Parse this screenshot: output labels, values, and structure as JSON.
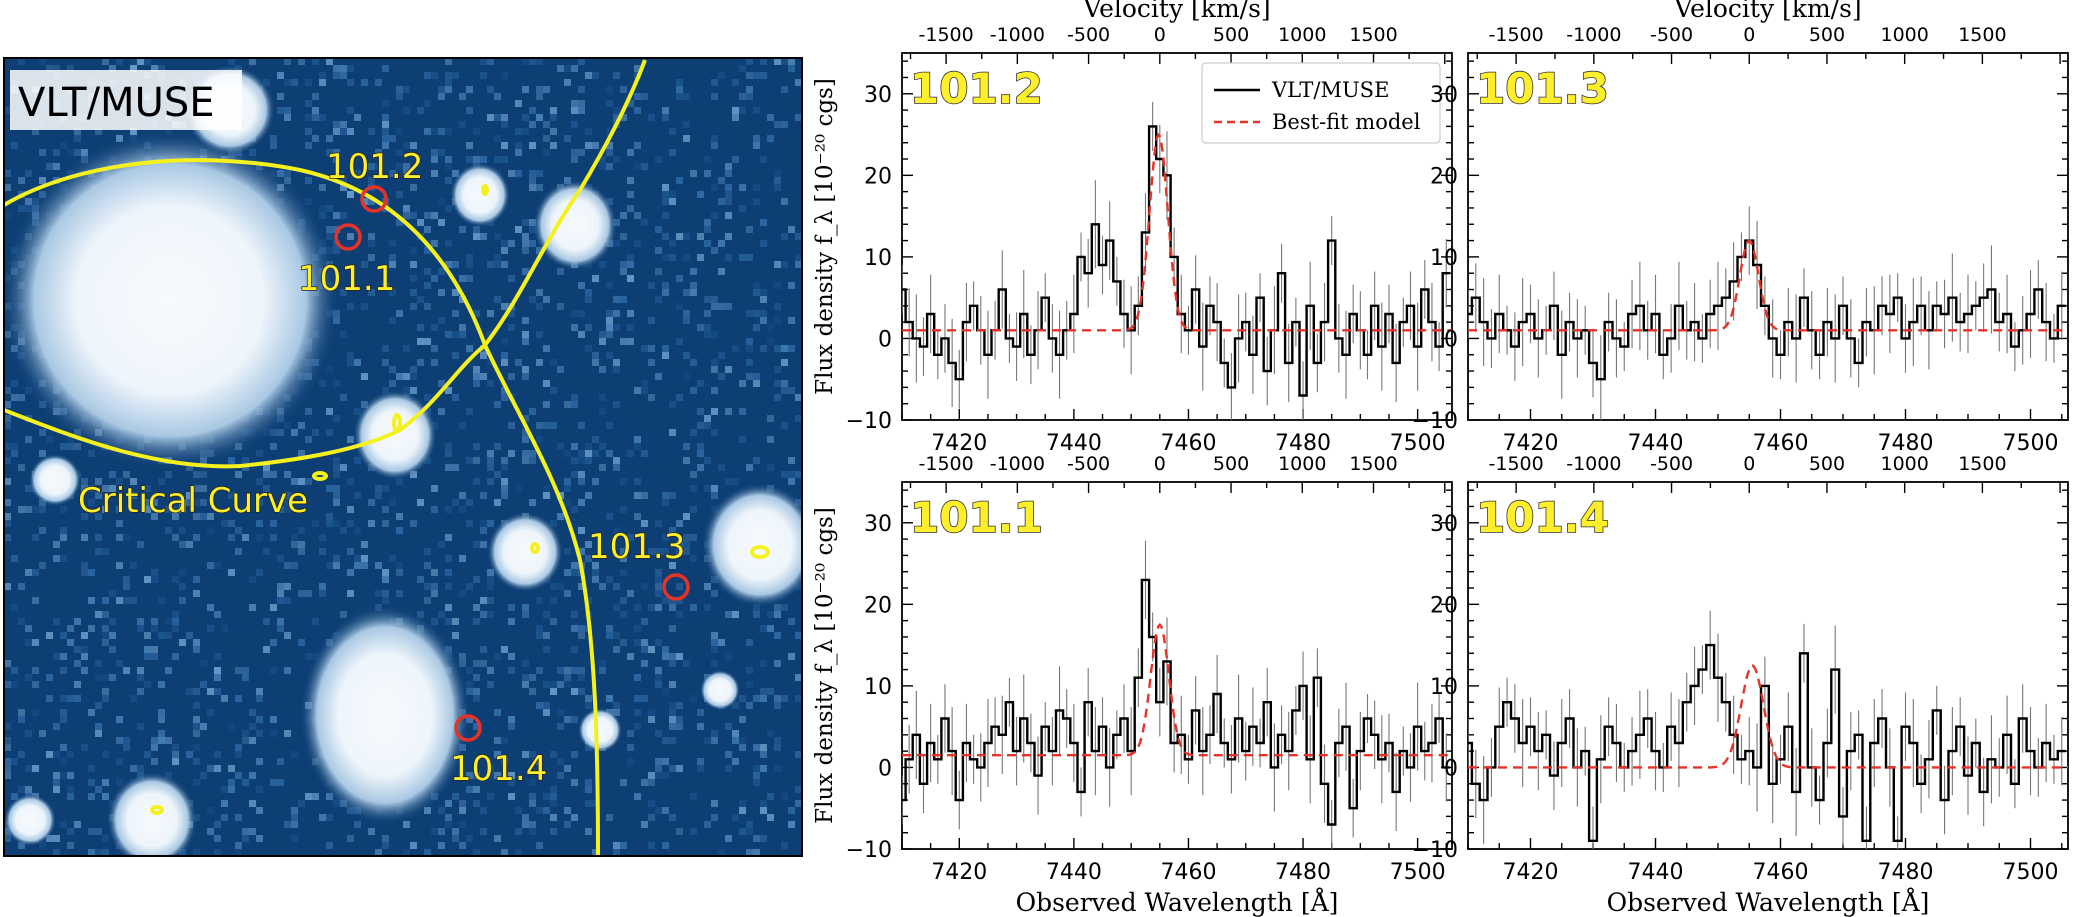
{
  "image_panel": {
    "instrument_label": "VLT/MUSE",
    "critical_curve_label": "Critical Curve",
    "images": [
      {
        "id": "101.2",
        "label": "101.2"
      },
      {
        "id": "101.1",
        "label": "101.1"
      },
      {
        "id": "101.3",
        "label": "101.3"
      },
      {
        "id": "101.4",
        "label": "101.4"
      }
    ],
    "colors": {
      "background": "#0d3f75",
      "source": "#f3f8fc",
      "curve": "#f5f11f",
      "marker": "#e53327",
      "label_fill": "#ffee2a"
    }
  },
  "chart_data": [
    {
      "type": "line",
      "panel_label": "101.2",
      "xlabel": "",
      "ylabel": "Flux density f_λ [10⁻²⁰ cgs]",
      "top_axis_label": "Velocity [km/s]",
      "xlim": [
        7410,
        7506
      ],
      "ylim": [
        -10,
        35
      ],
      "xticks": [
        "7420",
        "7440",
        "7460",
        "7480",
        "7500"
      ],
      "yticks": [
        "−10",
        "0",
        "10",
        "20",
        "30"
      ],
      "velocity_ticks": [
        "-1500",
        "-1000",
        "-500",
        "0",
        "500",
        "1000",
        "1500"
      ],
      "legend": [
        {
          "label": "VLT/MUSE",
          "color": "#000000",
          "style": "solid"
        },
        {
          "label": "Best-fit model",
          "color": "#e53327",
          "style": "dashed"
        }
      ],
      "x": [
        7410,
        7411.25,
        7412.5,
        7413.75,
        7415,
        7416.25,
        7417.5,
        7418.75,
        7420,
        7421.25,
        7422.5,
        7423.75,
        7425,
        7426.25,
        7427.5,
        7428.75,
        7430,
        7431.25,
        7432.5,
        7433.75,
        7435,
        7436.25,
        7437.5,
        7438.75,
        7440,
        7441.25,
        7442.5,
        7443.75,
        7445,
        7446.25,
        7447.5,
        7448.75,
        7450,
        7451.25,
        7452.5,
        7453.75,
        7455,
        7456.25,
        7457.5,
        7458.75,
        7460,
        7461.25,
        7462.5,
        7463.75,
        7465,
        7466.25,
        7467.5,
        7468.75,
        7470,
        7471.25,
        7472.5,
        7473.75,
        7475,
        7476.25,
        7477.5,
        7478.75,
        7480,
        7481.25,
        7482.5,
        7483.75,
        7485,
        7486.25,
        7487.5,
        7488.75,
        7490,
        7491.25,
        7492.5,
        7493.75,
        7495,
        7496.25,
        7497.5,
        7498.75,
        7500,
        7501.25,
        7502.5,
        7503.75,
        7505
      ],
      "series": [
        {
          "name": "VLT/MUSE",
          "values": [
            6,
            2,
            0,
            -1,
            3,
            -2,
            0,
            -3,
            -5,
            2,
            4,
            1,
            -2,
            1,
            6,
            0,
            -1,
            3,
            -2,
            1,
            5,
            0,
            -2,
            1,
            3,
            10,
            8,
            14,
            9,
            12,
            7,
            3,
            1,
            4,
            13,
            26,
            22,
            20,
            10,
            3,
            1,
            6,
            -1,
            4,
            2,
            -3,
            -6,
            0,
            2,
            -2,
            5,
            -4,
            1,
            8,
            -3,
            2,
            -7,
            4,
            -3,
            2,
            12,
            0,
            -2,
            3,
            1,
            -2,
            4,
            -1,
            3,
            -3,
            2,
            4,
            -1,
            6,
            2,
            -1,
            8
          ]
        },
        {
          "name": "Best-fit model",
          "model": {
            "amplitude": 24,
            "center": 7454.8,
            "sigma": 1.6,
            "continuum": 1
          }
        }
      ]
    },
    {
      "type": "line",
      "panel_label": "101.3",
      "xlabel": "",
      "ylabel": "",
      "top_axis_label": "Velocity [km/s]",
      "xlim": [
        7410,
        7506
      ],
      "ylim": [
        -10,
        35
      ],
      "xticks": [
        "7420",
        "7440",
        "7460",
        "7480",
        "7500"
      ],
      "yticks": [
        "−10",
        "0",
        "10",
        "20",
        "30"
      ],
      "velocity_ticks": [
        "-1500",
        "-1000",
        "-500",
        "0",
        "500",
        "1000",
        "1500"
      ],
      "x": [
        7410,
        7411.25,
        7412.5,
        7413.75,
        7415,
        7416.25,
        7417.5,
        7418.75,
        7420,
        7421.25,
        7422.5,
        7423.75,
        7425,
        7426.25,
        7427.5,
        7428.75,
        7430,
        7431.25,
        7432.5,
        7433.75,
        7435,
        7436.25,
        7437.5,
        7438.75,
        7440,
        7441.25,
        7442.5,
        7443.75,
        7445,
        7446.25,
        7447.5,
        7448.75,
        7450,
        7451.25,
        7452.5,
        7453.75,
        7455,
        7456.25,
        7457.5,
        7458.75,
        7460,
        7461.25,
        7462.5,
        7463.75,
        7465,
        7466.25,
        7467.5,
        7468.75,
        7470,
        7471.25,
        7472.5,
        7473.75,
        7475,
        7476.25,
        7477.5,
        7478.75,
        7480,
        7481.25,
        7482.5,
        7483.75,
        7485,
        7486.25,
        7487.5,
        7488.75,
        7490,
        7491.25,
        7492.5,
        7493.75,
        7495,
        7496.25,
        7497.5,
        7498.75,
        7500,
        7501.25,
        7502.5,
        7503.75,
        7505
      ],
      "series": [
        {
          "name": "VLT/MUSE",
          "values": [
            3,
            5,
            2,
            0,
            3,
            1,
            -1,
            2,
            3,
            0,
            1,
            4,
            -2,
            2,
            0,
            1,
            -3,
            -5,
            2,
            0,
            -1,
            3,
            4,
            1,
            3,
            -2,
            0,
            4,
            1,
            2,
            0,
            3,
            4,
            5,
            7,
            10,
            12,
            9,
            4,
            0,
            -2,
            2,
            0,
            5,
            1,
            -2,
            2,
            0,
            4,
            0,
            -3,
            2,
            1,
            4,
            3,
            5,
            0,
            2,
            4,
            1,
            4,
            3,
            5,
            2,
            3,
            4,
            5,
            6,
            2,
            3,
            -1,
            1,
            3,
            6,
            2,
            0,
            4
          ]
        },
        {
          "name": "Best-fit model",
          "model": {
            "amplitude": 11,
            "center": 7455,
            "sigma": 1.5,
            "continuum": 1
          }
        }
      ]
    },
    {
      "type": "line",
      "panel_label": "101.1",
      "xlabel": "Observed Wavelength [Å]",
      "ylabel": "Flux density f_λ [10⁻²⁰ cgs]",
      "top_axis_label": "",
      "xlim": [
        7410,
        7506
      ],
      "ylim": [
        -10,
        35
      ],
      "xticks": [
        "7420",
        "7440",
        "7460",
        "7480",
        "7500"
      ],
      "yticks": [
        "−10",
        "0",
        "10",
        "20",
        "30"
      ],
      "velocity_ticks": [
        "-1500",
        "-1000",
        "-500",
        "0",
        "500",
        "1000",
        "1500"
      ],
      "x": [
        7410,
        7411.25,
        7412.5,
        7413.75,
        7415,
        7416.25,
        7417.5,
        7418.75,
        7420,
        7421.25,
        7422.5,
        7423.75,
        7425,
        7426.25,
        7427.5,
        7428.75,
        7430,
        7431.25,
        7432.5,
        7433.75,
        7435,
        7436.25,
        7437.5,
        7438.75,
        7440,
        7441.25,
        7442.5,
        7443.75,
        7445,
        7446.25,
        7447.5,
        7448.75,
        7450,
        7451.25,
        7452.5,
        7453.75,
        7455,
        7456.25,
        7457.5,
        7458.75,
        7460,
        7461.25,
        7462.5,
        7463.75,
        7465,
        7466.25,
        7467.5,
        7468.75,
        7470,
        7471.25,
        7472.5,
        7473.75,
        7475,
        7476.25,
        7477.5,
        7478.75,
        7480,
        7481.25,
        7482.5,
        7483.75,
        7485,
        7486.25,
        7487.5,
        7488.75,
        7490,
        7491.25,
        7492.5,
        7493.75,
        7495,
        7496.25,
        7497.5,
        7498.75,
        7500,
        7501.25,
        7502.5,
        7503.75,
        7505
      ],
      "series": [
        {
          "name": "VLT/MUSE",
          "values": [
            -4,
            1,
            4,
            -2,
            3,
            1,
            6,
            2,
            -4,
            3,
            1,
            0,
            3,
            5,
            4,
            8,
            2,
            6,
            3,
            -1,
            5,
            2,
            7,
            6,
            3,
            -3,
            8,
            2,
            5,
            0,
            4,
            6,
            2,
            11,
            23,
            16,
            8,
            13,
            3,
            4,
            1,
            7,
            2,
            4,
            9,
            3,
            1,
            6,
            2,
            5,
            3,
            8,
            0,
            4,
            2,
            7,
            10,
            1,
            11,
            -2,
            -7,
            3,
            5,
            -5,
            2,
            6,
            4,
            1,
            3,
            -3,
            2,
            0,
            5,
            2,
            3,
            6,
            0
          ]
        },
        {
          "name": "Best-fit model",
          "model": {
            "amplitude": 16,
            "center": 7455,
            "sigma": 1.6,
            "continuum": 1.5
          }
        }
      ]
    },
    {
      "type": "line",
      "panel_label": "101.4",
      "xlabel": "Observed Wavelength [Å]",
      "ylabel": "",
      "top_axis_label": "",
      "xlim": [
        7410,
        7506
      ],
      "ylim": [
        -10,
        35
      ],
      "xticks": [
        "7420",
        "7440",
        "7460",
        "7480",
        "7500"
      ],
      "yticks": [
        "−10",
        "0",
        "10",
        "20",
        "30"
      ],
      "velocity_ticks": [
        "-1500",
        "-1000",
        "-500",
        "0",
        "500",
        "1000",
        "1500"
      ],
      "x": [
        7410,
        7411.25,
        7412.5,
        7413.75,
        7415,
        7416.25,
        7417.5,
        7418.75,
        7420,
        7421.25,
        7422.5,
        7423.75,
        7425,
        7426.25,
        7427.5,
        7428.75,
        7430,
        7431.25,
        7432.5,
        7433.75,
        7435,
        7436.25,
        7437.5,
        7438.75,
        7440,
        7441.25,
        7442.5,
        7443.75,
        7445,
        7446.25,
        7447.5,
        7448.75,
        7450,
        7451.25,
        7452.5,
        7453.75,
        7455,
        7456.25,
        7457.5,
        7458.75,
        7460,
        7461.25,
        7462.5,
        7463.75,
        7465,
        7466.25,
        7467.5,
        7468.75,
        7470,
        7471.25,
        7472.5,
        7473.75,
        7475,
        7476.25,
        7477.5,
        7478.75,
        7480,
        7481.25,
        7482.5,
        7483.75,
        7485,
        7486.25,
        7487.5,
        7488.75,
        7490,
        7491.25,
        7492.5,
        7493.75,
        7495,
        7496.25,
        7497.5,
        7498.75,
        7500,
        7501.25,
        7502.5,
        7503.75,
        7505
      ],
      "series": [
        {
          "name": "VLT/MUSE",
          "values": [
            3,
            -2,
            -4,
            0,
            5,
            8,
            6,
            3,
            5,
            2,
            4,
            -1,
            3,
            6,
            0,
            2,
            -9,
            1,
            5,
            3,
            0,
            2,
            4,
            6,
            2,
            0,
            5,
            3,
            8,
            10,
            12,
            15,
            11,
            8,
            4,
            1,
            2,
            0,
            10,
            -2,
            1,
            5,
            -3,
            14,
            0,
            -4,
            3,
            12,
            -6,
            2,
            4,
            -9,
            3,
            6,
            0,
            -9,
            5,
            3,
            -2,
            1,
            7,
            -4,
            2,
            5,
            -1,
            3,
            -3,
            1,
            0,
            4,
            -2,
            6,
            2,
            0,
            3,
            1,
            2
          ]
        },
        {
          "name": "Best-fit model",
          "model": {
            "amplitude": 12.5,
            "center": 7455.5,
            "sigma": 1.8,
            "continuum": 0
          }
        }
      ]
    }
  ]
}
